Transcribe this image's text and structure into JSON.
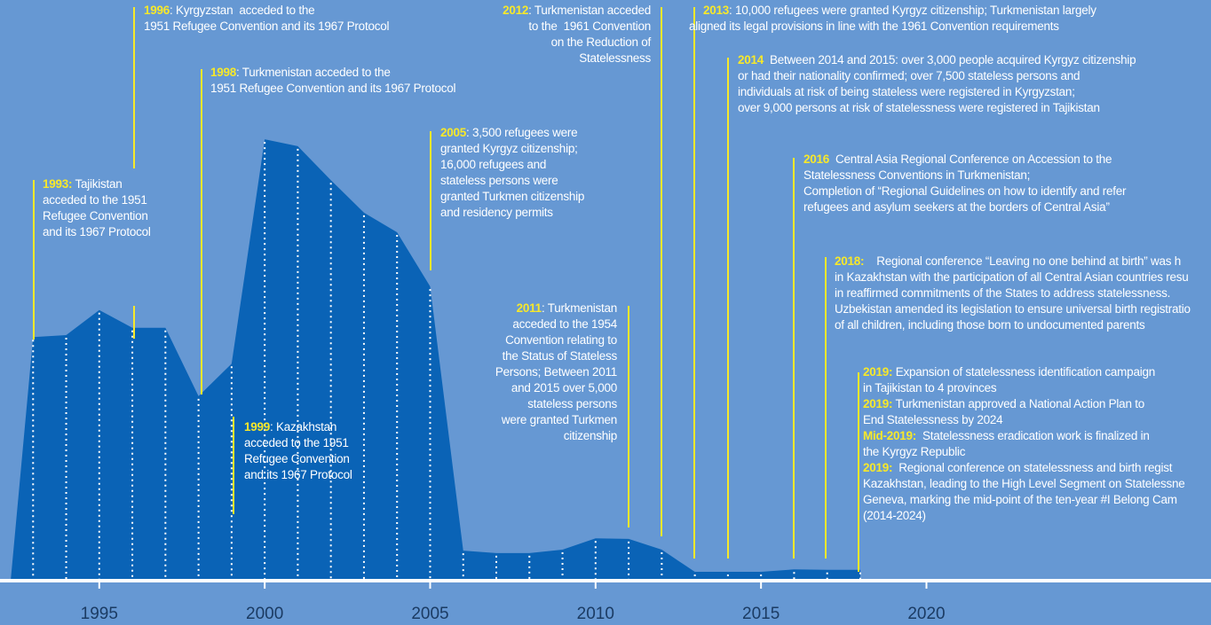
{
  "chart_data": {
    "type": "area",
    "x": [
      1993,
      1994,
      1995,
      1996,
      1997,
      1998,
      1999,
      2000,
      2001,
      2002,
      2003,
      2004,
      2005,
      2006,
      2007,
      2008,
      2009,
      2010,
      2011,
      2012,
      2013,
      2014,
      2015,
      2016,
      2017,
      2018
    ],
    "values": [
      49.5,
      49.9,
      55,
      51.4,
      51.4,
      37.5,
      44.1,
      89.7,
      88.3,
      81.4,
      74.8,
      70.8,
      59.8,
      6.1,
      5.6,
      5.6,
      6.3,
      8.6,
      8.5,
      6.3,
      1.8,
      1.8,
      1.8,
      2.3,
      2.2,
      2.2
    ],
    "color": "#0a63b6",
    "xlim": [
      1992,
      2028.6
    ],
    "xticks": [
      1995,
      2000,
      2005,
      2010,
      2015,
      2020
    ],
    "ylim": [
      0,
      100
    ],
    "annotations": [
      {
        "lines": [
          {
            "label": "1993:",
            "text": " Tajikistan"
          },
          {
            "text": "acceded to the 1951"
          },
          {
            "text": "Refugee Convention"
          },
          {
            "text": "and its 1967 Protocol"
          }
        ]
      },
      {
        "lines": [
          {
            "label": "1996",
            "text": ": Kyrgyzstan  acceded to the"
          },
          {
            "text": "1951 Refugee Convention and its 1967 Protocol"
          }
        ]
      },
      {
        "lines": [
          {
            "label": "1998",
            "text": ": Turkmenistan acceded to the"
          },
          {
            "text": "1951 Refugee Convention and its 1967 Protocol"
          }
        ]
      },
      {
        "lines": [
          {
            "label": "1999",
            "text": ": Kazakhstan"
          },
          {
            "text": "acceded to the 1951"
          },
          {
            "text": "Refugee Convention"
          },
          {
            "text": "and its 1967 Protocol"
          }
        ]
      },
      {
        "lines": [
          {
            "label": "2012",
            "text": ": Turkmenistan acceded"
          },
          {
            "text": "to the  1961 Convention"
          },
          {
            "text": "on the Reduction of"
          },
          {
            "text": "Statelessness"
          }
        ]
      },
      {
        "lines": [
          {
            "label": "2005",
            "text": ": 3,500 refugees were"
          },
          {
            "text": "granted Kyrgyz citizenship;"
          },
          {
            "text": "16,000 refugees and"
          },
          {
            "text": "stateless persons were"
          },
          {
            "text": "granted Turkmen citizenship"
          },
          {
            "text": "and residency permits"
          }
        ]
      },
      {
        "lines": [
          {
            "label": "2011",
            "text": ": Turkmenistan"
          },
          {
            "text": "acceded to the 1954"
          },
          {
            "text": "Convention relating to"
          },
          {
            "text": "the Status of Stateless"
          },
          {
            "text": "Persons; Between 2011"
          },
          {
            "text": "and 2015 over 5,000"
          },
          {
            "text": "stateless persons"
          },
          {
            "text": "were granted Turkmen"
          },
          {
            "text": "citizenship"
          }
        ]
      },
      {
        "lines": [
          {
            "label": "2013",
            "text": ": 10,000 refugees were granted Kyrgyz citizenship; Turkmenistan largely"
          },
          {
            "text": "aligned its legal provisions in line with the 1961 Convention requirements"
          }
        ]
      },
      {
        "lines": [
          {
            "label": "2014",
            "text": "  Between 2014 and 2015: over 3,000 people acquired Kyrgyz citizenship"
          },
          {
            "text": "or had their nationality confirmed; over 7,500 stateless persons and"
          },
          {
            "text": "individuals at risk of being stateless were registered in Kyrgyzstan;"
          },
          {
            "text": "over 9,000 persons at risk of statelessness were registered in Tajikistan"
          }
        ]
      },
      {
        "lines": [
          {
            "label": "2016",
            "text": "  Central Asia Regional Conference on Accession to the"
          },
          {
            "text": "Statelessness Conventions in Turkmenistan;"
          },
          {
            "text": "Completion of “Regional Guidelines on how to identify and refer"
          },
          {
            "text": "refugees and asylum seekers at the borders of Central Asia”"
          }
        ]
      },
      {
        "lines": [
          {
            "label": "2018:",
            "text": "    Regional conference “Leaving no one behind at birth” was h"
          },
          {
            "text": "in Kazakhstan with the participation of all Central Asian countries resu"
          },
          {
            "text": "in reaffirmed commitments of the States to address statelessness."
          },
          {
            "text": "Uzbekistan amended its legislation to ensure universal birth registratio"
          },
          {
            "text": "of all children, including those born to undocumented parents"
          }
        ]
      },
      {
        "lines": [
          {
            "label": "2019:",
            "text": " Expansion of statelessness identification campaign"
          },
          {
            "text": "in Tajikistan to 4 provinces"
          },
          {
            "label": "2019:",
            "text": " Turkmenistan approved a National Action Plan to"
          },
          {
            "text": "End Statelessness by 2024"
          },
          {
            "label": "Mid-2019:",
            "text": "  Statelessness eradication work is finalized in"
          },
          {
            "text": "the Kyrgyz Republic"
          },
          {
            "label": "2019:",
            "text": "  Regional conference on statelessness and birth regist"
          },
          {
            "text": "Kazakhstan, leading to the High Level Segment on Statelessne"
          },
          {
            "text": "Geneva, marking the mid-point of the ten-year #I Belong Cam"
          },
          {
            "text": "(2014-2024)"
          }
        ]
      }
    ]
  }
}
